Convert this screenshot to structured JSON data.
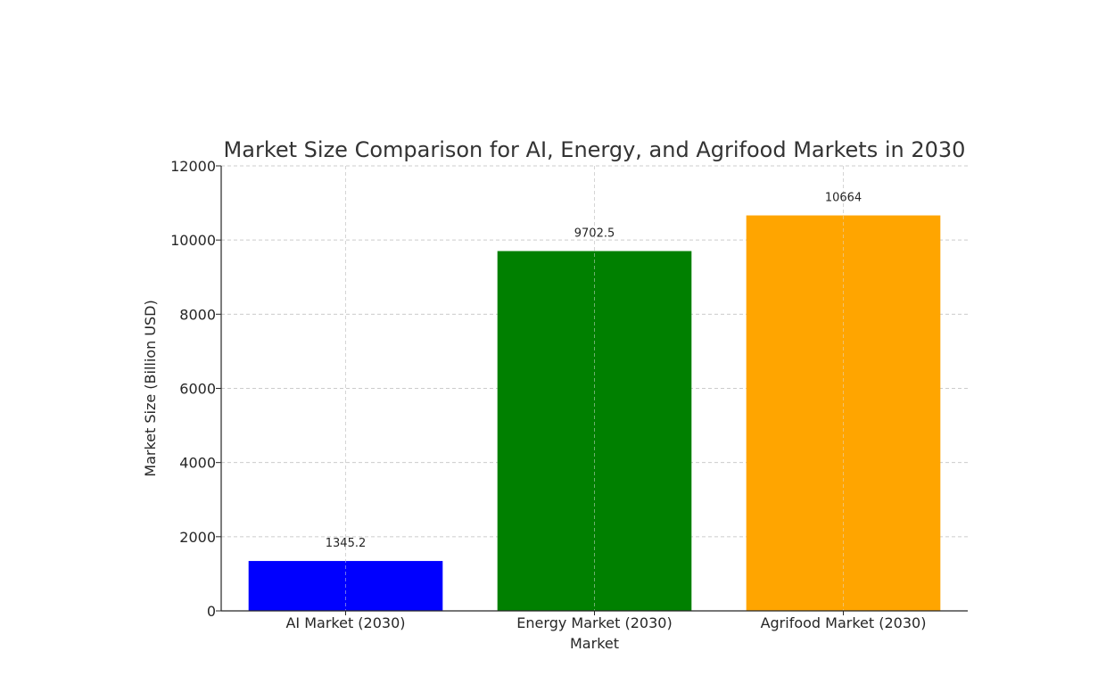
{
  "chart_data": {
    "type": "bar",
    "title": "Market Size Comparison for AI, Energy, and Agrifood Markets in 2030",
    "xlabel": "Market",
    "ylabel": "Market Size (Billion USD)",
    "categories": [
      "AI Market (2030)",
      "Energy Market (2030)",
      "Agrifood Market (2030)"
    ],
    "values": [
      1345.2,
      9702.5,
      10664
    ],
    "value_labels": [
      "1345.2",
      "9702.5",
      "10664"
    ],
    "colors": [
      "#0000ff",
      "#008000",
      "#ffa500"
    ],
    "ylim": [
      0,
      12000
    ],
    "yticks": [
      0,
      2000,
      4000,
      6000,
      8000,
      10000,
      12000
    ],
    "grid": true,
    "legend": "none"
  }
}
